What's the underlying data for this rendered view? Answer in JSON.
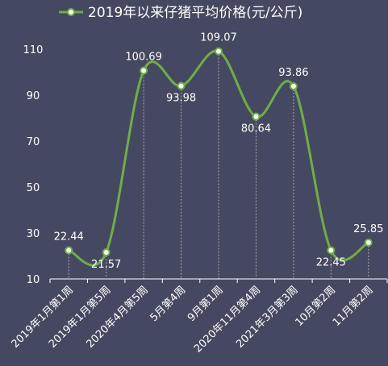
{
  "colors": {
    "background": "#454861",
    "line": "#70ad47",
    "marker_fill": "#ffffff",
    "text": "#ffffff",
    "drop_line": "#a7a9b8",
    "axis": "#ffffff"
  },
  "chart_data": {
    "type": "line",
    "title": "2019年以来仔猪平均价格(元/公斤)",
    "legend_position": "top",
    "categories": [
      "2019年1月第1周",
      "2019年1月第5周",
      "2020年4月第5周",
      "5月第4周",
      "9月第1周",
      "2020年11月第4周",
      "2021年3月第3周",
      "10月第2周",
      "11月第2周"
    ],
    "series": [
      {
        "name": "2019年以来仔猪平均价格(元/公斤)",
        "values": [
          22.44,
          21.57,
          100.69,
          93.98,
          109.07,
          80.64,
          93.86,
          22.45,
          25.85
        ],
        "data_labels": [
          "22.44",
          "21.57",
          "100.69",
          "93.98",
          "109.07",
          "80.64",
          "93.86",
          "22.45",
          "25.85"
        ]
      }
    ],
    "ylim": [
      10,
      110
    ],
    "yticks": [
      10,
      30,
      50,
      70,
      90,
      110
    ],
    "smooth": true,
    "drop_lines": true,
    "grid": false
  }
}
